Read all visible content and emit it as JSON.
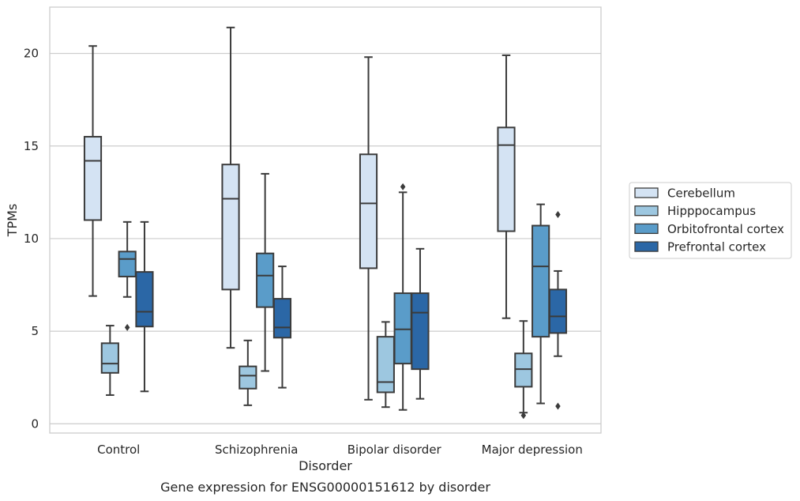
{
  "chart_data": {
    "type": "boxplot",
    "title": "Gene expression for ENSG00000151612 by disorder",
    "xlabel": "Disorder",
    "ylabel": "TPMs",
    "ylim": [
      -0.5,
      22.5
    ],
    "yticks": [
      0,
      5,
      10,
      15,
      20
    ],
    "grid": "horizontal",
    "legend_position": "right",
    "categories": [
      "Control",
      "Schizophrenia",
      "Bipolar disorder",
      "Major depression"
    ],
    "series": [
      {
        "name": "Cerebellum",
        "color": "#d4e3f3",
        "boxes": [
          {
            "whislo": 6.9,
            "q1": 11.0,
            "med": 14.2,
            "q3": 15.5,
            "whishi": 20.4,
            "fliers": []
          },
          {
            "whislo": 4.1,
            "q1": 7.25,
            "med": 12.15,
            "q3": 14.0,
            "whishi": 21.4,
            "fliers": []
          },
          {
            "whislo": 1.3,
            "q1": 8.4,
            "med": 11.9,
            "q3": 14.55,
            "whishi": 19.8,
            "fliers": []
          },
          {
            "whislo": 5.7,
            "q1": 10.4,
            "med": 15.05,
            "q3": 16.0,
            "whishi": 19.9,
            "fliers": []
          }
        ]
      },
      {
        "name": "Hipppocampus",
        "color": "#9dc7e0",
        "boxes": [
          {
            "whislo": 1.55,
            "q1": 2.75,
            "med": 3.25,
            "q3": 4.35,
            "whishi": 5.3,
            "fliers": []
          },
          {
            "whislo": 1.0,
            "q1": 1.9,
            "med": 2.6,
            "q3": 3.1,
            "whishi": 4.5,
            "fliers": []
          },
          {
            "whislo": 0.9,
            "q1": 1.7,
            "med": 2.25,
            "q3": 4.7,
            "whishi": 5.5,
            "fliers": []
          },
          {
            "whislo": 0.6,
            "q1": 2.0,
            "med": 2.95,
            "q3": 3.8,
            "whishi": 5.55,
            "fliers": [
              0.45
            ]
          }
        ]
      },
      {
        "name": "Orbitofrontal cortex",
        "color": "#5a9cc9",
        "boxes": [
          {
            "whislo": 6.85,
            "q1": 7.95,
            "med": 8.9,
            "q3": 9.3,
            "whishi": 10.9,
            "fliers": [
              5.2
            ]
          },
          {
            "whislo": 2.85,
            "q1": 6.3,
            "med": 8.0,
            "q3": 9.2,
            "whishi": 13.5,
            "fliers": []
          },
          {
            "whislo": 0.75,
            "q1": 3.25,
            "med": 5.1,
            "q3": 7.05,
            "whishi": 12.5,
            "fliers": [
              12.8
            ]
          },
          {
            "whislo": 1.1,
            "q1": 4.7,
            "med": 8.5,
            "q3": 10.7,
            "whishi": 11.85,
            "fliers": []
          }
        ]
      },
      {
        "name": "Prefrontal cortex",
        "color": "#2b67a6",
        "boxes": [
          {
            "whislo": 1.75,
            "q1": 5.25,
            "med": 6.05,
            "q3": 8.2,
            "whishi": 10.9,
            "fliers": []
          },
          {
            "whislo": 1.95,
            "q1": 4.65,
            "med": 5.2,
            "q3": 6.75,
            "whishi": 8.5,
            "fliers": []
          },
          {
            "whislo": 1.35,
            "q1": 2.95,
            "med": 6.0,
            "q3": 7.05,
            "whishi": 9.45,
            "fliers": []
          },
          {
            "whislo": 3.65,
            "q1": 4.9,
            "med": 5.8,
            "q3": 7.25,
            "whishi": 8.25,
            "fliers": [
              11.3,
              0.95
            ]
          }
        ]
      }
    ]
  }
}
